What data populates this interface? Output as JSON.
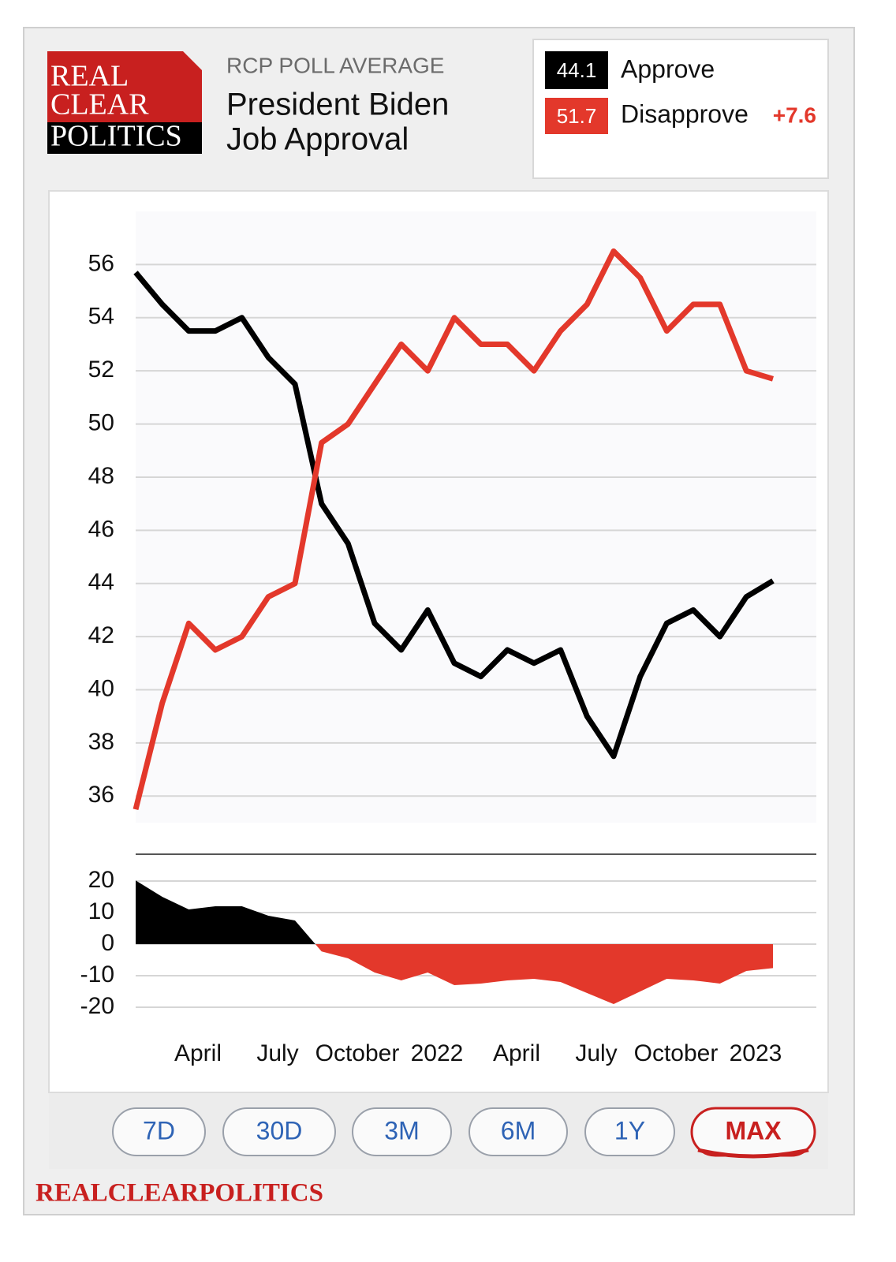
{
  "header": {
    "logo": [
      "REAL",
      "CLEAR",
      "POLITICS"
    ],
    "kicker": "RCP POLL AVERAGE",
    "title": [
      "President Biden",
      "Job Approval"
    ]
  },
  "legend": {
    "items": [
      {
        "value": "44.1",
        "label": "Approve",
        "color": "#000000"
      },
      {
        "value": "51.7",
        "label": "Disapprove",
        "color": "#e3382b"
      }
    ],
    "spread": "+7.6"
  },
  "chart_data": [
    {
      "type": "line",
      "x": [
        "2021-01",
        "2021-02",
        "2021-03",
        "2021-04",
        "2021-05",
        "2021-06",
        "2021-07",
        "2021-08",
        "2021-09",
        "2021-10",
        "2021-11",
        "2021-12",
        "2022-01",
        "2022-02",
        "2022-03",
        "2022-04",
        "2022-05",
        "2022-06",
        "2022-07",
        "2022-08",
        "2022-09",
        "2022-10",
        "2022-11",
        "2022-12",
        "2023-01"
      ],
      "xlim": [
        "2021-01",
        "2023-01"
      ],
      "ylim": [
        35,
        58
      ],
      "yticks": [
        36,
        38,
        40,
        42,
        44,
        46,
        48,
        50,
        52,
        54,
        56
      ],
      "grid": true,
      "series": [
        {
          "name": "Approve",
          "color": "#000000",
          "values": [
            55.7,
            54.5,
            53.5,
            53.5,
            54,
            52.5,
            51.5,
            47,
            45.5,
            42.5,
            41.5,
            43,
            41,
            40.5,
            41.5,
            41,
            41.5,
            39,
            37.5,
            40.5,
            42.5,
            43,
            42,
            43.5,
            44.1
          ]
        },
        {
          "name": "Disapprove",
          "color": "#e3382b",
          "values": [
            35.5,
            39.5,
            42.5,
            41.5,
            42,
            43.5,
            44,
            49.3,
            50,
            51.5,
            53,
            52,
            54,
            53,
            53,
            52,
            53.5,
            54.5,
            56.5,
            55.5,
            53.5,
            54.5,
            54.5,
            52,
            51.7
          ]
        }
      ]
    },
    {
      "type": "spread-area",
      "x": [
        "2021-01",
        "2021-02",
        "2021-03",
        "2021-04",
        "2021-05",
        "2021-06",
        "2021-07",
        "2021-08",
        "2021-09",
        "2021-10",
        "2021-11",
        "2021-12",
        "2022-01",
        "2022-02",
        "2022-03",
        "2022-04",
        "2022-05",
        "2022-06",
        "2022-07",
        "2022-08",
        "2022-09",
        "2022-10",
        "2022-11",
        "2022-12",
        "2023-01"
      ],
      "xlim": [
        "2021-01",
        "2023-01"
      ],
      "ylim": [
        -25,
        25
      ],
      "yticks": [
        -20,
        -10,
        0,
        10,
        20
      ],
      "grid": true,
      "xticks": [
        {
          "value": "2021-04",
          "label": "April"
        },
        {
          "value": "2021-07",
          "label": "July"
        },
        {
          "value": "2021-10",
          "label": "October"
        },
        {
          "value": "2022-01",
          "label": "2022"
        },
        {
          "value": "2022-04",
          "label": "April"
        },
        {
          "value": "2022-07",
          "label": "July"
        },
        {
          "value": "2022-10",
          "label": "October"
        },
        {
          "value": "2023-01",
          "label": "2023"
        }
      ],
      "positive_color": "#000000",
      "negative_color": "#e3382b",
      "values": [
        20.2,
        15,
        11,
        12,
        12,
        9,
        7.5,
        -2.3,
        -4.5,
        -9,
        -11.5,
        -9,
        -13,
        -12.5,
        -11.5,
        -11,
        -12,
        -15.5,
        -19,
        -15,
        -11,
        -11.5,
        -12.5,
        -8.5,
        -7.6
      ]
    }
  ],
  "buttons": [
    "7D",
    "30D",
    "3M",
    "6M",
    "1Y",
    "MAX"
  ],
  "footer": "REALCLEARPOLITICS"
}
